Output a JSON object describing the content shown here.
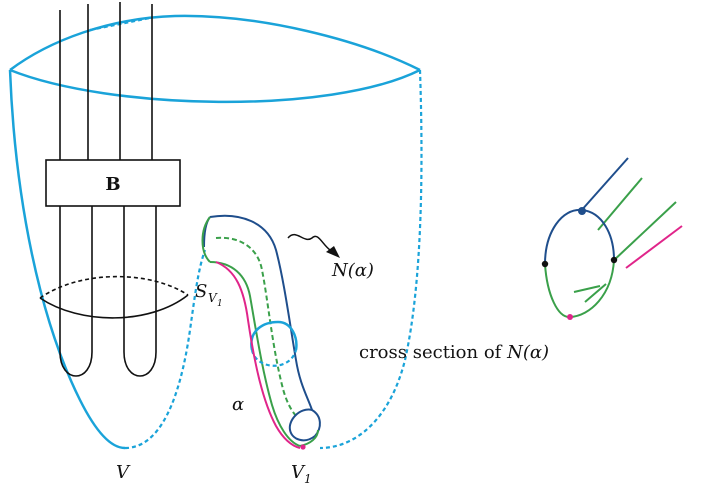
{
  "labels": {
    "braid_box": "B",
    "neighborhood": "N(α)",
    "surface_main": "S",
    "surface_sub": "V",
    "surface_subsub": "1",
    "arc": "α",
    "solid_torus": "V",
    "solid_torus_1_main": "V",
    "solid_torus_1_sub": "1"
  },
  "caption": {
    "text": "cross section of ",
    "math": "N(α)"
  },
  "colors": {
    "boundary": "#1aa3d9",
    "strand": "#111111",
    "tube_outer": "#1f4e8c",
    "tube_mid": "#3aa04a",
    "arc": "#e0258a"
  }
}
